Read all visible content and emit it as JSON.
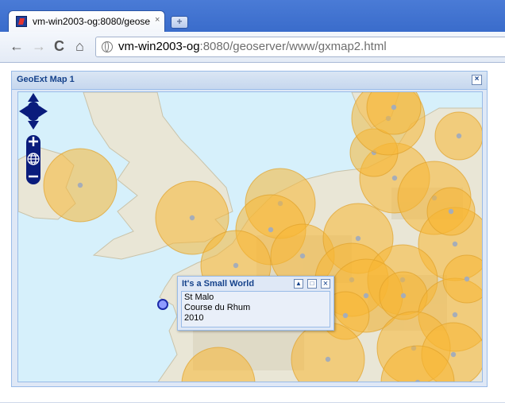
{
  "browser": {
    "tab_title": "vm-win2003-og:8080/geose",
    "tab_close": "×",
    "new_tab": "+",
    "url_host": "vm-win2003-og",
    "url_rest": ":8080/geoserver/www/gxmap2.html",
    "back": "←",
    "forward": "→",
    "reload": "C",
    "home": "⌂"
  },
  "panel": {
    "title": "GeoExt Map 1",
    "close": "×"
  },
  "popup": {
    "title": "It's a Small World",
    "lines": [
      "St Malo",
      "Course du Rhum",
      "2010"
    ],
    "btn_up": "▲",
    "btn_max": "□",
    "btn_close": "×"
  },
  "colors": {
    "sea": "#d6f0fb",
    "land": "#e9e6d6",
    "circle_fill": "#f7b733",
    "circle_stroke": "#e0a12a",
    "selected_fill": "#8e9bff",
    "selected_stroke": "#1b2aa8",
    "control": "#0a1c7c"
  }
}
